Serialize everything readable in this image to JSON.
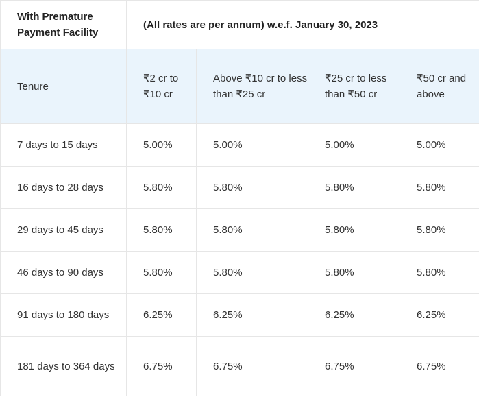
{
  "table": {
    "facility_label": "With Premature Payment Facility",
    "rates_note": "(All rates are per annum) w.e.f. January 30, 2023",
    "columns": [
      "Tenure",
      "₹2 cr to ₹10 cr",
      "Above ₹10 cr to less than ₹25 cr",
      "₹25 cr to less than ₹50 cr",
      "₹50 cr and above"
    ],
    "rows": [
      [
        "7 days to 15 days",
        "5.00%",
        "5.00%",
        "5.00%",
        "5.00%"
      ],
      [
        "16 days to 28 days",
        "5.80%",
        "5.80%",
        "5.80%",
        "5.80%"
      ],
      [
        "29 days to 45 days",
        "5.80%",
        "5.80%",
        "5.80%",
        "5.80%"
      ],
      [
        "46 days to 90 days",
        "5.80%",
        "5.80%",
        "5.80%",
        "5.80%"
      ],
      [
        "91 days to 180 days",
        "6.25%",
        "6.25%",
        "6.25%",
        "6.25%"
      ],
      [
        "181 days to 364 days",
        "6.75%",
        "6.75%",
        "6.75%",
        "6.75%"
      ]
    ]
  }
}
